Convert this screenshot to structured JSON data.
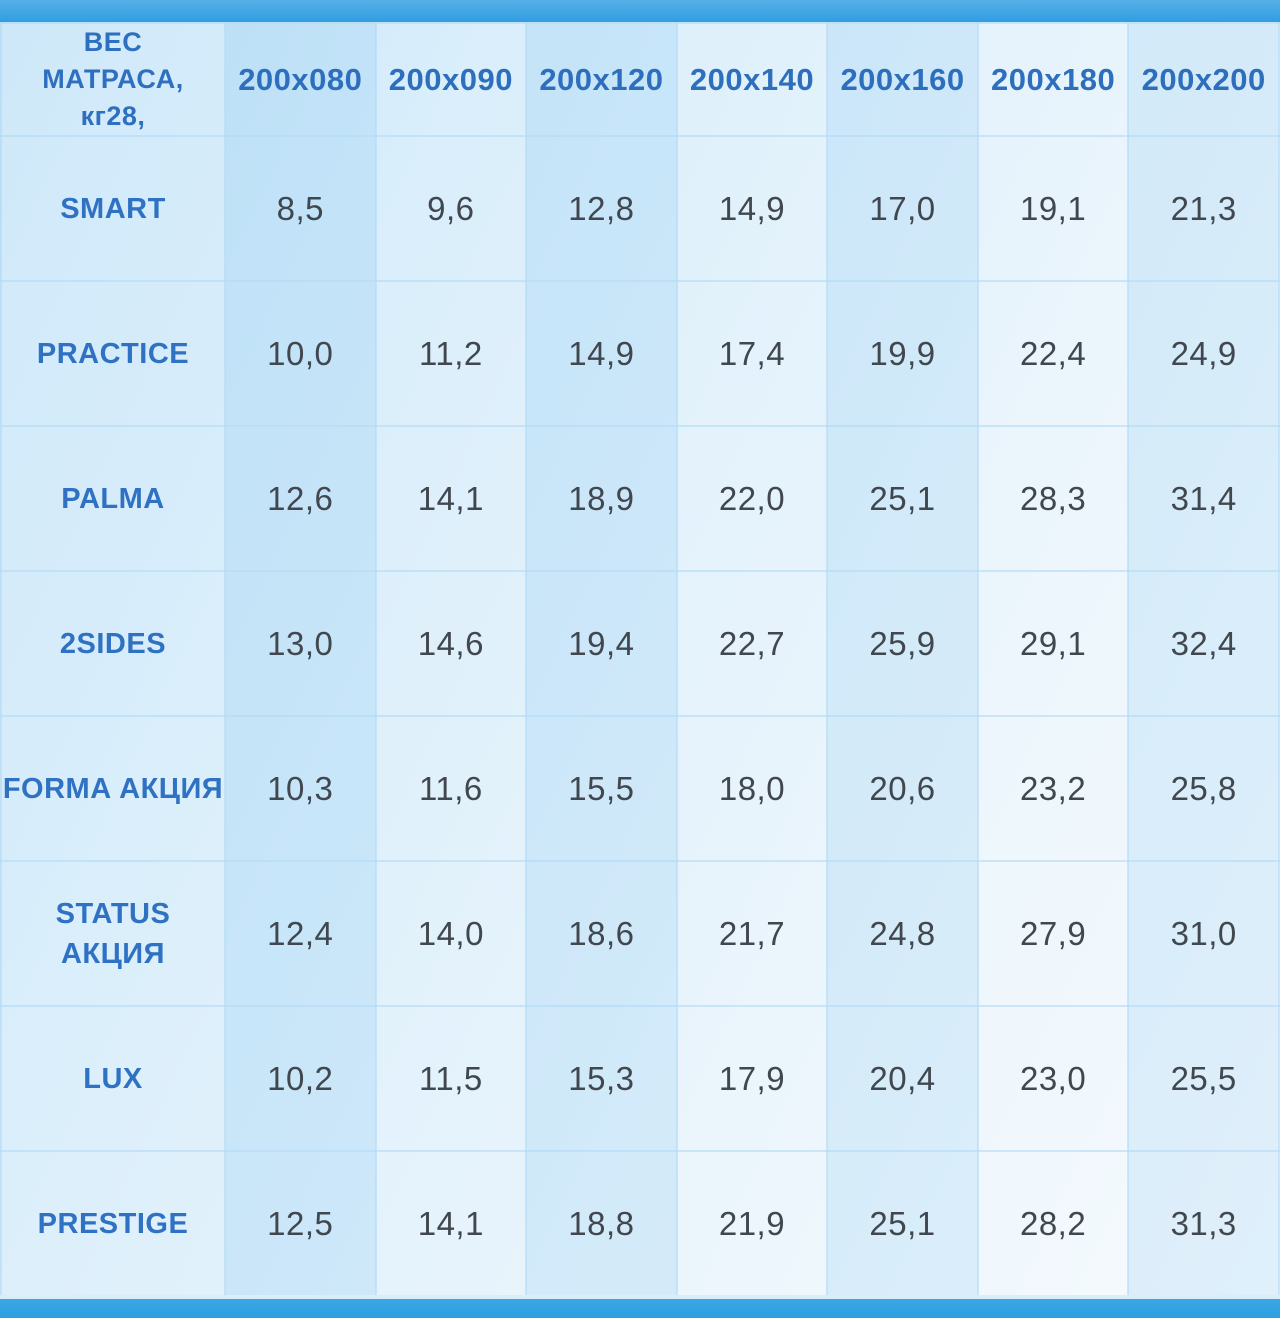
{
  "page": {
    "top_bar_color": "#3aa3e3",
    "bottom_bar_color": "#319fe1",
    "table_bg_start": "#c3e3f8",
    "table_bg_end": "#f4fafe",
    "header_text_color": "#2d6ebd",
    "value_text_color": "#41474e"
  },
  "table": {
    "header_lines": [
      "ВЕС",
      "МАТРАСА,",
      "кг28,"
    ],
    "columns": [
      "200x080",
      "200x090",
      "200x120",
      "200x140",
      "200x160",
      "200x180",
      "200x200"
    ],
    "rows": [
      {
        "model": "SMART",
        "values": [
          "8,5",
          "9,6",
          "12,8",
          "14,9",
          "17,0",
          "19,1",
          "21,3"
        ]
      },
      {
        "model": "PRACTICE",
        "values": [
          "10,0",
          "11,2",
          "14,9",
          "17,4",
          "19,9",
          "22,4",
          "24,9"
        ]
      },
      {
        "model": "PALMA",
        "values": [
          "12,6",
          "14,1",
          "18,9",
          "22,0",
          "25,1",
          "28,3",
          "31,4"
        ]
      },
      {
        "model": "2SIDES",
        "values": [
          "13,0",
          "14,6",
          "19,4",
          "22,7",
          "25,9",
          "29,1",
          "32,4"
        ]
      },
      {
        "model": "FORMA АКЦИЯ",
        "values": [
          "10,3",
          "11,6",
          "15,5",
          "18,0",
          "20,6",
          "23,2",
          "25,8"
        ]
      },
      {
        "model": "STATUS АКЦИЯ",
        "values": [
          "12,4",
          "14,0",
          "18,6",
          "21,7",
          "24,8",
          "27,9",
          "31,0"
        ]
      },
      {
        "model": "LUX",
        "values": [
          "10,2",
          "11,5",
          "15,3",
          "17,9",
          "20,4",
          "23,0",
          "25,5"
        ]
      },
      {
        "model": "PRESTIGE",
        "values": [
          "12,5",
          "14,1",
          "18,8",
          "21,9",
          "25,1",
          "28,2",
          "31,3"
        ]
      }
    ]
  },
  "chart_data": {
    "type": "table",
    "title": "ВЕС МАТРАСА, кг28,",
    "categories": [
      "200x080",
      "200x090",
      "200x120",
      "200x140",
      "200x160",
      "200x180",
      "200x200"
    ],
    "series": [
      {
        "name": "SMART",
        "values": [
          8.5,
          9.6,
          12.8,
          14.9,
          17.0,
          19.1,
          21.3
        ]
      },
      {
        "name": "PRACTICE",
        "values": [
          10.0,
          11.2,
          14.9,
          17.4,
          19.9,
          22.4,
          24.9
        ]
      },
      {
        "name": "PALMA",
        "values": [
          12.6,
          14.1,
          18.9,
          22.0,
          25.1,
          28.3,
          31.4
        ]
      },
      {
        "name": "2SIDES",
        "values": [
          13.0,
          14.6,
          19.4,
          22.7,
          25.9,
          29.1,
          32.4
        ]
      },
      {
        "name": "FORMA АКЦИЯ",
        "values": [
          10.3,
          11.6,
          15.5,
          18.0,
          20.6,
          23.2,
          25.8
        ]
      },
      {
        "name": "STATUS АКЦИЯ",
        "values": [
          12.4,
          14.0,
          18.6,
          21.7,
          24.8,
          27.9,
          31.0
        ]
      },
      {
        "name": "LUX",
        "values": [
          10.2,
          11.5,
          15.3,
          17.9,
          20.4,
          23.0,
          25.5
        ]
      },
      {
        "name": "PRESTIGE",
        "values": [
          12.5,
          14.1,
          18.8,
          21.9,
          25.1,
          28.2,
          31.3
        ]
      }
    ]
  }
}
